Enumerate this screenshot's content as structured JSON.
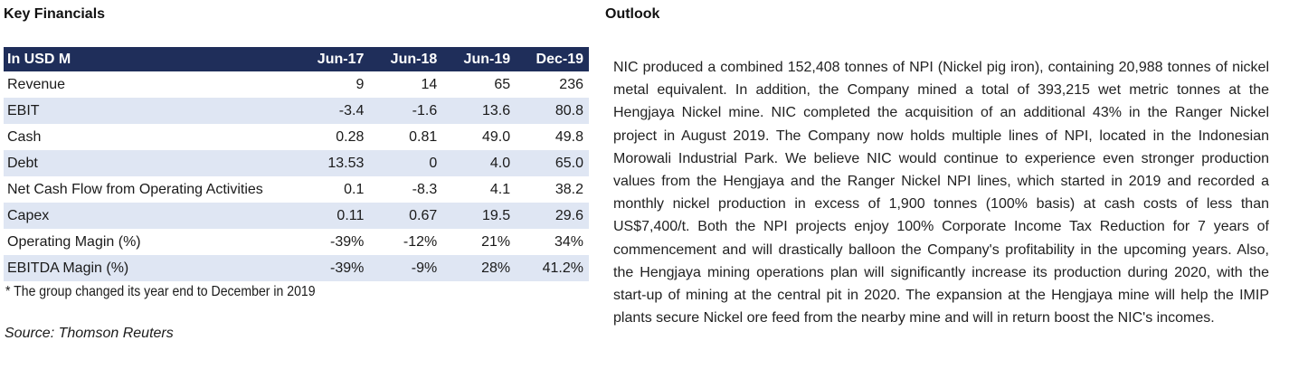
{
  "key_financials": {
    "title": "Key Financials",
    "header": [
      "In USD M",
      "Jun-17",
      "Jun-18",
      "Jun-19",
      "Dec-19"
    ],
    "rows": [
      {
        "label": "Revenue",
        "values": [
          "9",
          "14",
          "65",
          "236"
        ]
      },
      {
        "label": "EBIT",
        "values": [
          "-3.4",
          "-1.6",
          "13.6",
          "80.8"
        ]
      },
      {
        "label": "Cash",
        "values": [
          "0.28",
          "0.81",
          "49.0",
          "49.8"
        ]
      },
      {
        "label": "Debt",
        "values": [
          "13.53",
          "0",
          "4.0",
          "65.0"
        ]
      },
      {
        "label": "Net Cash Flow from Operating Activities",
        "values": [
          "0.1",
          "-8.3",
          "4.1",
          "38.2"
        ]
      },
      {
        "label": "Capex",
        "values": [
          "0.11",
          "0.67",
          "19.5",
          "29.6"
        ]
      },
      {
        "label": "Operating Magin (%)",
        "values": [
          "-39%",
          "-12%",
          "21%",
          "34%"
        ]
      },
      {
        "label": "EBITDA Magin (%)",
        "values": [
          "-39%",
          "-9%",
          "28%",
          "41.2%"
        ]
      }
    ],
    "note": "* The group changed its year end to December in 2019",
    "source": "Source: Thomson Reuters"
  },
  "outlook": {
    "title": "Outlook",
    "text": "NIC produced a combined 152,408 tonnes of NPI (Nickel pig iron), containing 20,988 tonnes of nickel metal equivalent. In addition, the Company mined a total of 393,215 wet metric tonnes at the Hengjaya Nickel mine. NIC completed the acquisition of an additional 43% in the Ranger Nickel project in August 2019. The Company now holds multiple lines of NPI, located in the Indonesian Morowali Industrial Park. We believe NIC would continue to experience even stronger production values from the Hengjaya and the Ranger Nickel NPI lines, which started in 2019 and recorded a monthly nickel production in excess of 1,900 tonnes (100% basis) at cash costs of less than US$7,400/t. Both the NPI projects enjoy 100% Corporate Income Tax Reduction for 7 years of commencement and will drastically balloon the Company's profitability in the upcoming years. Also, the Hengjaya mining operations plan will significantly increase its production during 2020, with the start-up of mining at the central pit in 2020. The expansion at the Hengjaya mine will help the IMIP plants secure Nickel ore feed from the nearby mine and will in return boost the NIC's incomes."
  },
  "colors": {
    "header_bg": "#1f2e5a",
    "header_text": "#ffffff",
    "row_shade": "#dfe6f3"
  }
}
